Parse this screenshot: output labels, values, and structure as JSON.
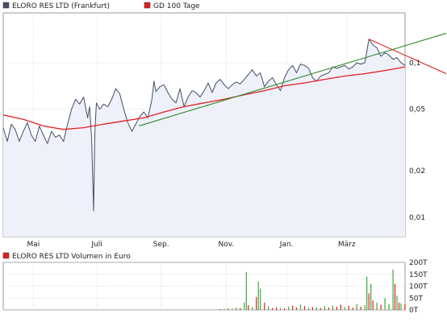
{
  "chart_data": [
    {
      "type": "line",
      "legend": [
        {
          "label": "ELORO RES LTD (Frankfurt)",
          "color": "#444e66"
        },
        {
          "label": "GD 100 Tage",
          "color": "#e02020"
        }
      ],
      "y_scale": "log",
      "y_ticks": [
        {
          "value": 0.01,
          "label": "0,01"
        },
        {
          "value": 0.02,
          "label": "0,02"
        },
        {
          "value": 0.05,
          "label": "0,05"
        },
        {
          "value": 0.1,
          "label": "0,1"
        }
      ],
      "ylim": [
        0.0075,
        0.21
      ],
      "x_ticks": [
        {
          "t": 0.075,
          "label": "Mai"
        },
        {
          "t": 0.233,
          "label": "Juli"
        },
        {
          "t": 0.393,
          "label": "Sep."
        },
        {
          "t": 0.555,
          "label": "Nov."
        },
        {
          "t": 0.705,
          "label": "Jan."
        },
        {
          "t": 0.855,
          "label": "März"
        }
      ],
      "grid": true,
      "legend_position": "top-left",
      "series": [
        {
          "name": "ELORO RES LTD (Frankfurt)",
          "color": "#444e66",
          "fill": "#eef0fa",
          "points": [
            [
              0.0,
              0.038
            ],
            [
              0.01,
              0.031
            ],
            [
              0.02,
              0.04
            ],
            [
              0.03,
              0.037
            ],
            [
              0.04,
              0.031
            ],
            [
              0.05,
              0.036
            ],
            [
              0.06,
              0.041
            ],
            [
              0.07,
              0.034
            ],
            [
              0.08,
              0.031
            ],
            [
              0.09,
              0.039
            ],
            [
              0.1,
              0.034
            ],
            [
              0.11,
              0.03
            ],
            [
              0.12,
              0.036
            ],
            [
              0.13,
              0.033
            ],
            [
              0.14,
              0.034
            ],
            [
              0.15,
              0.031
            ],
            [
              0.16,
              0.04
            ],
            [
              0.17,
              0.05
            ],
            [
              0.18,
              0.058
            ],
            [
              0.19,
              0.054
            ],
            [
              0.2,
              0.06
            ],
            [
              0.21,
              0.044
            ],
            [
              0.215,
              0.052
            ],
            [
              0.22,
              0.032
            ],
            [
              0.225,
              0.011
            ],
            [
              0.228,
              0.035
            ],
            [
              0.232,
              0.055
            ],
            [
              0.24,
              0.05
            ],
            [
              0.25,
              0.054
            ],
            [
              0.26,
              0.052
            ],
            [
              0.27,
              0.058
            ],
            [
              0.28,
              0.068
            ],
            [
              0.29,
              0.063
            ],
            [
              0.3,
              0.05
            ],
            [
              0.31,
              0.041
            ],
            [
              0.32,
              0.036
            ],
            [
              0.33,
              0.04
            ],
            [
              0.34,
              0.045
            ],
            [
              0.35,
              0.048
            ],
            [
              0.36,
              0.044
            ],
            [
              0.37,
              0.058
            ],
            [
              0.375,
              0.076
            ],
            [
              0.38,
              0.065
            ],
            [
              0.39,
              0.07
            ],
            [
              0.4,
              0.072
            ],
            [
              0.41,
              0.064
            ],
            [
              0.42,
              0.058
            ],
            [
              0.43,
              0.055
            ],
            [
              0.44,
              0.068
            ],
            [
              0.45,
              0.052
            ],
            [
              0.46,
              0.06
            ],
            [
              0.47,
              0.066
            ],
            [
              0.48,
              0.064
            ],
            [
              0.49,
              0.06
            ],
            [
              0.5,
              0.066
            ],
            [
              0.51,
              0.074
            ],
            [
              0.52,
              0.064
            ],
            [
              0.53,
              0.074
            ],
            [
              0.54,
              0.078
            ],
            [
              0.55,
              0.072
            ],
            [
              0.56,
              0.068
            ],
            [
              0.57,
              0.072
            ],
            [
              0.58,
              0.075
            ],
            [
              0.59,
              0.073
            ],
            [
              0.6,
              0.078
            ],
            [
              0.61,
              0.084
            ],
            [
              0.62,
              0.09
            ],
            [
              0.63,
              0.082
            ],
            [
              0.64,
              0.086
            ],
            [
              0.65,
              0.07
            ],
            [
              0.66,
              0.076
            ],
            [
              0.67,
              0.08
            ],
            [
              0.68,
              0.072
            ],
            [
              0.69,
              0.066
            ],
            [
              0.7,
              0.08
            ],
            [
              0.71,
              0.09
            ],
            [
              0.72,
              0.096
            ],
            [
              0.73,
              0.086
            ],
            [
              0.74,
              0.098
            ],
            [
              0.75,
              0.096
            ],
            [
              0.76,
              0.092
            ],
            [
              0.77,
              0.08
            ],
            [
              0.78,
              0.076
            ],
            [
              0.79,
              0.082
            ],
            [
              0.8,
              0.084
            ],
            [
              0.81,
              0.086
            ],
            [
              0.82,
              0.094
            ],
            [
              0.83,
              0.092
            ],
            [
              0.84,
              0.094
            ],
            [
              0.85,
              0.096
            ],
            [
              0.86,
              0.091
            ],
            [
              0.87,
              0.094
            ],
            [
              0.88,
              0.1
            ],
            [
              0.89,
              0.098
            ],
            [
              0.9,
              0.1
            ],
            [
              0.91,
              0.142
            ],
            [
              0.92,
              0.13
            ],
            [
              0.93,
              0.125
            ],
            [
              0.94,
              0.11
            ],
            [
              0.95,
              0.116
            ],
            [
              0.96,
              0.112
            ],
            [
              0.97,
              0.105
            ],
            [
              0.98,
              0.108
            ],
            [
              0.99,
              0.1
            ],
            [
              1.0,
              0.096
            ]
          ]
        },
        {
          "name": "GD 100 Tage",
          "color": "#e02020",
          "points": [
            [
              0.0,
              0.046
            ],
            [
              0.05,
              0.043
            ],
            [
              0.1,
              0.039
            ],
            [
              0.15,
              0.037
            ],
            [
              0.2,
              0.038
            ],
            [
              0.25,
              0.04
            ],
            [
              0.3,
              0.042
            ],
            [
              0.35,
              0.044
            ],
            [
              0.4,
              0.048
            ],
            [
              0.45,
              0.052
            ],
            [
              0.5,
              0.055
            ],
            [
              0.55,
              0.058
            ],
            [
              0.6,
              0.062
            ],
            [
              0.65,
              0.066
            ],
            [
              0.7,
              0.071
            ],
            [
              0.75,
              0.074
            ],
            [
              0.8,
              0.078
            ],
            [
              0.85,
              0.082
            ],
            [
              0.9,
              0.085
            ],
            [
              0.95,
              0.089
            ],
            [
              1.0,
              0.094
            ]
          ]
        }
      ],
      "trendlines": [
        {
          "color": "#2a8a2a",
          "from": [
            0.338,
            0.039
          ],
          "to": [
            1.11,
            0.155
          ]
        },
        {
          "color": "#e02020",
          "from": [
            0.91,
            0.142
          ],
          "to": [
            1.11,
            0.085
          ]
        }
      ]
    },
    {
      "type": "bar",
      "legend": [
        {
          "label": "ELORO RES LTD Volumen in Euro",
          "color": "#e02020"
        }
      ],
      "y_ticks": [
        {
          "value": 0,
          "label": "0T"
        },
        {
          "value": 50,
          "label": "50T"
        },
        {
          "value": 100,
          "label": "100T"
        },
        {
          "value": 150,
          "label": "150T"
        },
        {
          "value": 200,
          "label": "200T"
        }
      ],
      "ylim": [
        0,
        200
      ],
      "colors": {
        "up": "#3aaa3a",
        "down": "#e02020"
      },
      "bars": [
        [
          0.54,
          3,
          0
        ],
        [
          0.55,
          4,
          1
        ],
        [
          0.56,
          6,
          0
        ],
        [
          0.57,
          5,
          1
        ],
        [
          0.58,
          10,
          1
        ],
        [
          0.59,
          8,
          0
        ],
        [
          0.6,
          30,
          1
        ],
        [
          0.605,
          160,
          1
        ],
        [
          0.61,
          20,
          0
        ],
        [
          0.62,
          12,
          1
        ],
        [
          0.63,
          55,
          0
        ],
        [
          0.635,
          120,
          1
        ],
        [
          0.64,
          90,
          1
        ],
        [
          0.65,
          30,
          0
        ],
        [
          0.66,
          15,
          1
        ],
        [
          0.67,
          8,
          0
        ],
        [
          0.68,
          10,
          0
        ],
        [
          0.69,
          8,
          1
        ],
        [
          0.7,
          6,
          0
        ],
        [
          0.71,
          14,
          1
        ],
        [
          0.72,
          18,
          0
        ],
        [
          0.73,
          10,
          0
        ],
        [
          0.74,
          22,
          1
        ],
        [
          0.75,
          16,
          0
        ],
        [
          0.76,
          8,
          1
        ],
        [
          0.77,
          12,
          0
        ],
        [
          0.78,
          10,
          1
        ],
        [
          0.79,
          8,
          0
        ],
        [
          0.8,
          16,
          1
        ],
        [
          0.81,
          10,
          0
        ],
        [
          0.82,
          18,
          1
        ],
        [
          0.83,
          14,
          0
        ],
        [
          0.84,
          22,
          0
        ],
        [
          0.85,
          12,
          1
        ],
        [
          0.86,
          18,
          0
        ],
        [
          0.87,
          10,
          0
        ],
        [
          0.88,
          24,
          1
        ],
        [
          0.89,
          14,
          0
        ],
        [
          0.9,
          20,
          1
        ],
        [
          0.905,
          140,
          1
        ],
        [
          0.91,
          70,
          0
        ],
        [
          0.915,
          110,
          1
        ],
        [
          0.92,
          40,
          0
        ],
        [
          0.93,
          30,
          1
        ],
        [
          0.94,
          22,
          0
        ],
        [
          0.95,
          50,
          1
        ],
        [
          0.96,
          24,
          1
        ],
        [
          0.97,
          170,
          1
        ],
        [
          0.975,
          110,
          0
        ],
        [
          0.98,
          60,
          1
        ],
        [
          0.985,
          30,
          0
        ],
        [
          0.99,
          28,
          1
        ],
        [
          1.0,
          24,
          0
        ]
      ]
    }
  ]
}
